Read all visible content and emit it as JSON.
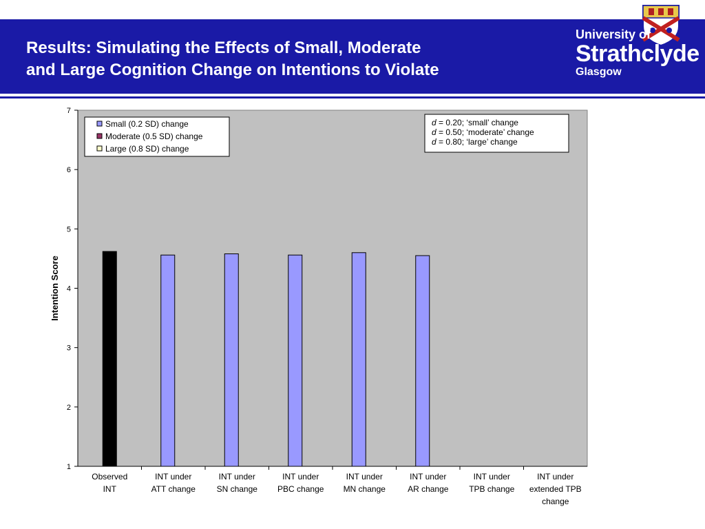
{
  "slide": {
    "title_line1": "Results: Simulating the Effects of Small, Moderate",
    "title_line2": "and Large Cognition Change on Intentions to Violate",
    "logo": {
      "line1": "University of",
      "line2": "Strathclyde",
      "line3": "Glasgow",
      "brand_color": "#1a1aa6"
    }
  },
  "chart_data": {
    "type": "bar",
    "ylabel": "Intention Score",
    "xlabel": "",
    "ylim": [
      1,
      7
    ],
    "yticks": [
      1,
      2,
      3,
      4,
      5,
      6,
      7
    ],
    "grid": false,
    "legend_position": "top-left",
    "plot_background": "#c0c0c0",
    "categories": [
      [
        "Observed",
        "INT"
      ],
      [
        "INT under",
        "ATT change"
      ],
      [
        "INT under",
        "SN change"
      ],
      [
        "INT under",
        "PBC change"
      ],
      [
        "INT under",
        "MN change"
      ],
      [
        "INT under",
        "AR change"
      ],
      [
        "INT under",
        "TPB change"
      ],
      [
        "INT under",
        "extended TPB",
        "change"
      ]
    ],
    "observed": {
      "value": 4.62,
      "color": "#000000"
    },
    "series": [
      {
        "name": "Small (0.2 SD) change",
        "color": "#9999ff",
        "values": [
          null,
          4.56,
          4.58,
          4.56,
          4.6,
          4.55,
          null,
          null
        ]
      },
      {
        "name": "Moderate (0.5 SD) change",
        "color": "#993366",
        "values": [
          null,
          null,
          null,
          null,
          null,
          null,
          null,
          null
        ]
      },
      {
        "name": "Large (0.8 SD) change",
        "color": "#ffffcc",
        "values": [
          null,
          null,
          null,
          null,
          null,
          null,
          null,
          null
        ]
      }
    ],
    "annotation": [
      {
        "d": "d",
        "text": " = 0.20; ‘small’ change"
      },
      {
        "d": "d",
        "text": " = 0.50; ‘moderate’ change"
      },
      {
        "d": "d",
        "text": " = 0.80; ‘large’ change"
      }
    ]
  }
}
